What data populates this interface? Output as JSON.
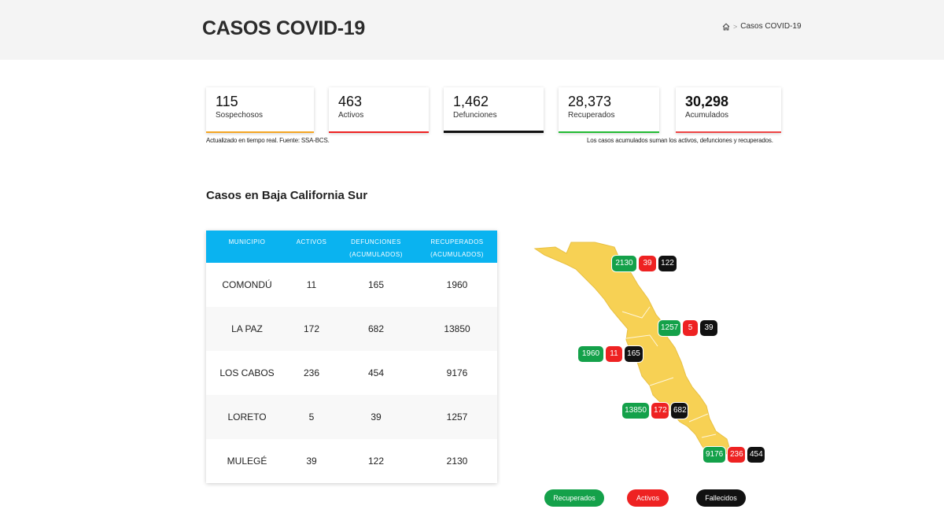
{
  "header": {
    "title": "CASOS COVID-19",
    "breadcrumb_current": "Casos COVID-19",
    "breadcrumb_sep": ">",
    "home_icon": "home-icon"
  },
  "stats": [
    {
      "value": "115",
      "label": "Sospechosos",
      "color": "#f5a623"
    },
    {
      "value": "463",
      "label": "Activos",
      "color": "#ee2222"
    },
    {
      "value": "1,462",
      "label": "Defunciones",
      "color": "#111111"
    },
    {
      "value": "28,373",
      "label": "Recuperados",
      "color": "#22bb33"
    },
    {
      "value": "30,298",
      "label": "Acumulados",
      "color": "#ee4444"
    }
  ],
  "notes": {
    "left": "Actualizado en tiempo real. Fuente: SSA-BCS.",
    "right": "Los casos acumulados suman los activos, defunciones y recuperados."
  },
  "section_title": "Casos en Baja California Sur",
  "table": {
    "headers": {
      "municipio": "MUNICIPIO",
      "activos": "ACTIVOS",
      "defunciones_1": "DEFUNCIONES",
      "defunciones_2": "(ACUMULADOS)",
      "recuperados_1": "RECUPERADOS",
      "recuperados_2": "(ACUMULADOS)"
    },
    "rows": [
      {
        "municipio": "COMONDÚ",
        "activos": "11",
        "defunciones": "165",
        "recuperados": "1960"
      },
      {
        "municipio": "LA PAZ",
        "activos": "172",
        "defunciones": "682",
        "recuperados": "13850"
      },
      {
        "municipio": "LOS CABOS",
        "activos": "236",
        "defunciones": "454",
        "recuperados": "9176"
      },
      {
        "municipio": "LORETO",
        "activos": "5",
        "defunciones": "39",
        "recuperados": "1257"
      },
      {
        "municipio": "MULEGÉ",
        "activos": "39",
        "defunciones": "122",
        "recuperados": "2130"
      }
    ]
  },
  "map": {
    "fill_color": "#f7d154",
    "badges": [
      {
        "recuperados": "2130",
        "activos": "39",
        "fallecidos": "122"
      },
      {
        "recuperados": "1257",
        "activos": "5",
        "fallecidos": "39"
      },
      {
        "recuperados": "1960",
        "activos": "11",
        "fallecidos": "165"
      },
      {
        "recuperados": "13850",
        "activos": "172",
        "fallecidos": "682"
      },
      {
        "recuperados": "9176",
        "activos": "236",
        "fallecidos": "454"
      }
    ]
  },
  "legend": {
    "recuperados": "Recuperados",
    "activos": "Activos",
    "fallecidos": "Fallecidos"
  }
}
